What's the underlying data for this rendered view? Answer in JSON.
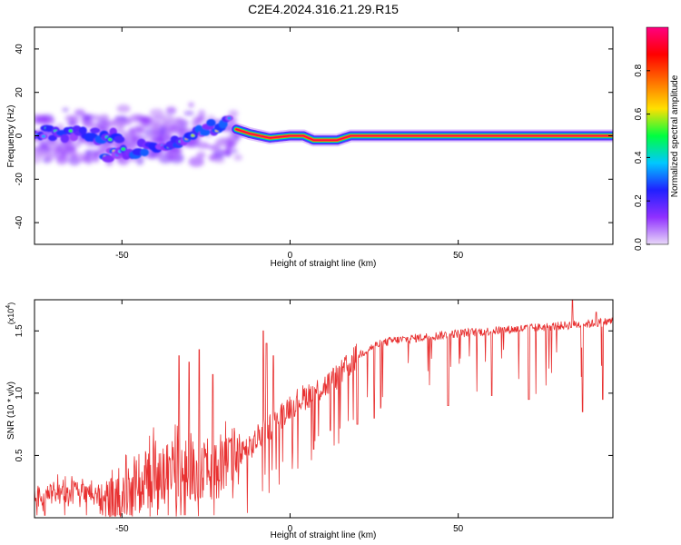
{
  "figure": {
    "title": "C2E4.2024.316.21.29.R15"
  },
  "chart_data": [
    {
      "type": "heatmap",
      "xlabel": "Height of straight line (km)",
      "ylabel": "Frequency (Hz)",
      "xlim": [
        -76,
        96
      ],
      "ylim": [
        -50,
        50
      ],
      "x_ticks": [
        -50,
        0,
        50
      ],
      "y_ticks": [
        -40,
        -20,
        0,
        20,
        40
      ],
      "colorbar": {
        "label": "Normalized spectral amplitude",
        "range": [
          0,
          1
        ],
        "ticks": [
          0.0,
          0.2,
          0.4,
          0.6,
          0.8
        ],
        "colors": [
          "#e8d8f8",
          "#9030ff",
          "#2020ff",
          "#00c8ff",
          "#00ff40",
          "#ffe000",
          "#ff7000",
          "#ff0000",
          "#ff0080"
        ]
      },
      "scatter_component": {
        "x_range": [
          -76,
          -15
        ],
        "frequency_spread_hz": [
          -12,
          25
        ],
        "peak_tracks": [
          {
            "x": [
              -76,
              -66,
              -58,
              -50
            ],
            "y": [
              2,
              1,
              0,
              -1
            ]
          },
          {
            "x": [
              -55,
              -45,
              -35,
              -25,
              -18
            ],
            "y": [
              -9,
              -6,
              -3,
              3,
              6
            ]
          }
        ]
      },
      "stable_component": {
        "points": [
          {
            "x": -16,
            "y": 3
          },
          {
            "x": -12,
            "y": 1
          },
          {
            "x": -6,
            "y": -1
          },
          {
            "x": 0,
            "y": 0
          },
          {
            "x": 4,
            "y": 0
          },
          {
            "x": 7,
            "y": -2
          },
          {
            "x": 14,
            "y": -2
          },
          {
            "x": 18,
            "y": 0
          },
          {
            "x": 96,
            "y": 0
          }
        ],
        "peak_amplitude": 1.0
      }
    },
    {
      "type": "line",
      "xlabel": "Height of straight line (km)",
      "ylabel": "SNR (10 * v/v)",
      "y_multiplier": "(x10",
      "y_multiplier_exp": "4",
      "y_multiplier_close": ")",
      "xlim": [
        -76,
        96
      ],
      "ylim": [
        0,
        1.75
      ],
      "x_ticks": [
        -50,
        0,
        50
      ],
      "y_ticks": [
        0.5,
        1.0,
        1.5
      ],
      "y_tick_labels": [
        "0.5",
        "1.0",
        "1.5"
      ],
      "color": "#e83030",
      "baseline": {
        "x": [
          -76,
          -70,
          -60,
          -55,
          -50,
          -40,
          -30,
          -20,
          -15,
          -12,
          -8,
          -5,
          0,
          5,
          10,
          15,
          20,
          25,
          30,
          40,
          50,
          60,
          70,
          80,
          90,
          96
        ],
        "y": [
          0.15,
          0.2,
          0.18,
          0.12,
          0.22,
          0.3,
          0.35,
          0.38,
          0.5,
          0.55,
          0.7,
          0.75,
          0.9,
          0.98,
          1.05,
          1.15,
          1.3,
          1.38,
          1.42,
          1.45,
          1.48,
          1.5,
          1.52,
          1.54,
          1.56,
          1.58
        ]
      },
      "spikes": [
        {
          "x": -33,
          "y": 1.3
        },
        {
          "x": -30,
          "y": 1.25
        },
        {
          "x": -27,
          "y": 1.35
        },
        {
          "x": -23,
          "y": 1.15
        },
        {
          "x": -8,
          "y": 1.5
        },
        {
          "x": -7,
          "y": 1.4
        },
        {
          "x": -5,
          "y": 1.3
        },
        {
          "x": 84,
          "y": 1.75
        },
        {
          "x": 91,
          "y": 1.65
        }
      ],
      "dips": [
        {
          "x": 7,
          "y": 0.55
        },
        {
          "x": 12,
          "y": 0.7
        },
        {
          "x": 20,
          "y": 0.75
        },
        {
          "x": 25,
          "y": 0.8
        },
        {
          "x": 47,
          "y": 0.9
        },
        {
          "x": 60,
          "y": 0.98
        },
        {
          "x": 71,
          "y": 0.95
        },
        {
          "x": 87,
          "y": 0.85
        },
        {
          "x": 93,
          "y": 0.95
        }
      ]
    }
  ]
}
